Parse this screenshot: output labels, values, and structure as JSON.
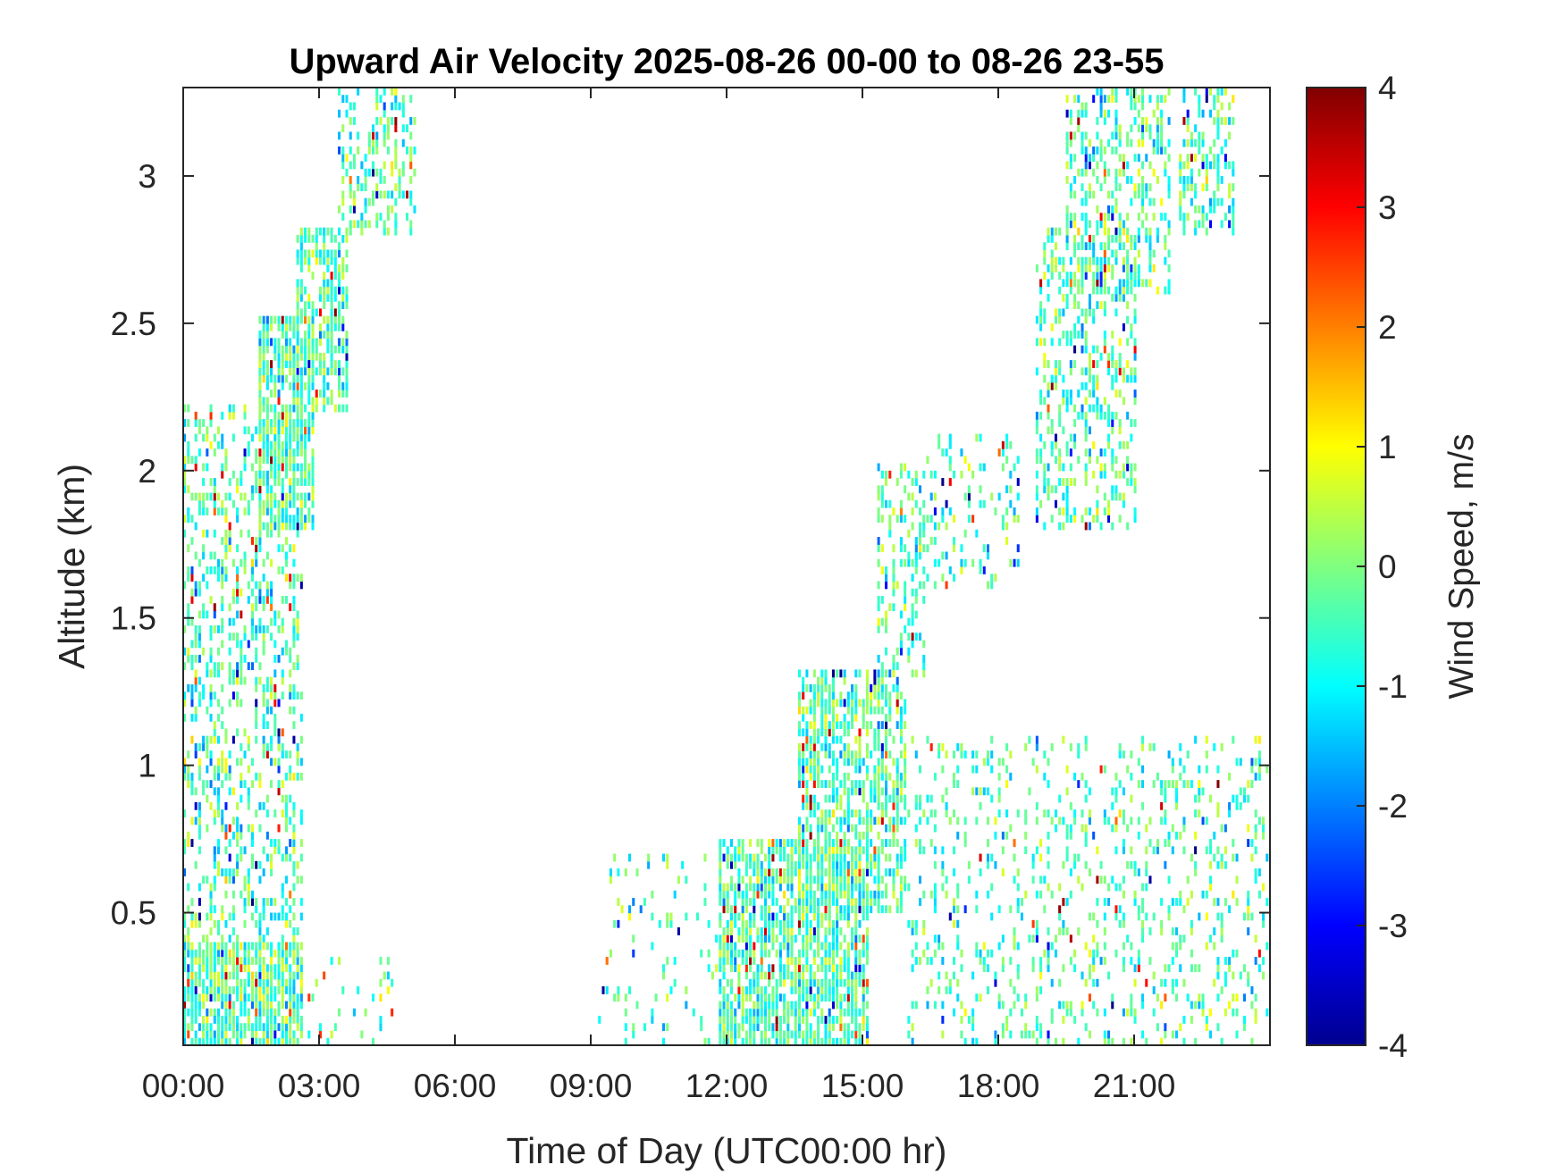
{
  "chart_data": {
    "type": "heatmap",
    "title": "Upward Air Velocity 2025-08-26 00-00 to 08-26 23-55",
    "xlabel": "Time of Day (UTC00:00 hr)",
    "ylabel": "Altitude (km)",
    "colorbar_label": "Wind Speed, m/s",
    "xlim": [
      0,
      24
    ],
    "ylim": [
      0.05,
      3.3
    ],
    "x_ticks": [
      {
        "value": 0,
        "label": "00:00"
      },
      {
        "value": 3,
        "label": "03:00"
      },
      {
        "value": 6,
        "label": "06:00"
      },
      {
        "value": 9,
        "label": "09:00"
      },
      {
        "value": 12,
        "label": "12:00"
      },
      {
        "value": 15,
        "label": "15:00"
      },
      {
        "value": 18,
        "label": "18:00"
      },
      {
        "value": 21,
        "label": "21:00"
      }
    ],
    "y_ticks": [
      {
        "value": 0.5,
        "label": "0.5"
      },
      {
        "value": 1,
        "label": "1"
      },
      {
        "value": 1.5,
        "label": "1.5"
      },
      {
        "value": 2,
        "label": "2"
      },
      {
        "value": 2.5,
        "label": "2.5"
      },
      {
        "value": 3,
        "label": "3"
      }
    ],
    "clim": [
      -4,
      4
    ],
    "c_ticks": [
      {
        "value": 4,
        "label": "4"
      },
      {
        "value": 3,
        "label": "3"
      },
      {
        "value": 2,
        "label": "2"
      },
      {
        "value": 1,
        "label": "1"
      },
      {
        "value": 0,
        "label": "0"
      },
      {
        "value": -1,
        "label": "-1"
      },
      {
        "value": -2,
        "label": "-2"
      },
      {
        "value": -3,
        "label": "-3"
      },
      {
        "value": -4,
        "label": "-4"
      }
    ],
    "colormap": "jet",
    "time_step_hr": 0.0833,
    "altitude_step_km": 0.025,
    "echo_regions": [
      {
        "t_start": 0.0,
        "t_end": 2.6,
        "alt_min": 0.05,
        "alt_max": 2.2,
        "density": 0.35
      },
      {
        "t_start": 0.0,
        "t_end": 2.6,
        "alt_min": 0.05,
        "alt_max": 0.4,
        "density": 0.75
      },
      {
        "t_start": 1.7,
        "t_end": 2.9,
        "alt_min": 1.8,
        "alt_max": 2.5,
        "density": 0.75
      },
      {
        "t_start": 2.5,
        "t_end": 3.6,
        "alt_min": 2.2,
        "alt_max": 2.8,
        "density": 0.6
      },
      {
        "t_start": 3.4,
        "t_end": 5.1,
        "alt_min": 2.8,
        "alt_max": 3.3,
        "density": 0.4
      },
      {
        "t_start": 2.6,
        "t_end": 4.6,
        "alt_min": 0.05,
        "alt_max": 0.35,
        "density": 0.12
      },
      {
        "t_start": 9.2,
        "t_end": 11.8,
        "alt_min": 0.05,
        "alt_max": 0.7,
        "density": 0.1
      },
      {
        "t_start": 11.8,
        "t_end": 15.1,
        "alt_min": 0.05,
        "alt_max": 0.75,
        "density": 0.72
      },
      {
        "t_start": 13.6,
        "t_end": 16.0,
        "alt_min": 0.5,
        "alt_max": 1.3,
        "density": 0.6
      },
      {
        "t_start": 15.3,
        "t_end": 16.3,
        "alt_min": 1.3,
        "alt_max": 2.0,
        "density": 0.35
      },
      {
        "t_start": 16.3,
        "t_end": 18.4,
        "alt_min": 1.6,
        "alt_max": 2.1,
        "density": 0.2
      },
      {
        "t_start": 16.0,
        "t_end": 24.0,
        "alt_min": 0.05,
        "alt_max": 1.1,
        "density": 0.2
      },
      {
        "t_start": 18.8,
        "t_end": 21.0,
        "alt_min": 1.8,
        "alt_max": 2.8,
        "density": 0.35
      },
      {
        "t_start": 19.5,
        "t_end": 21.8,
        "alt_min": 2.6,
        "alt_max": 3.3,
        "density": 0.4
      },
      {
        "t_start": 22.0,
        "t_end": 23.2,
        "alt_min": 2.8,
        "alt_max": 3.3,
        "density": 0.55
      }
    ]
  }
}
